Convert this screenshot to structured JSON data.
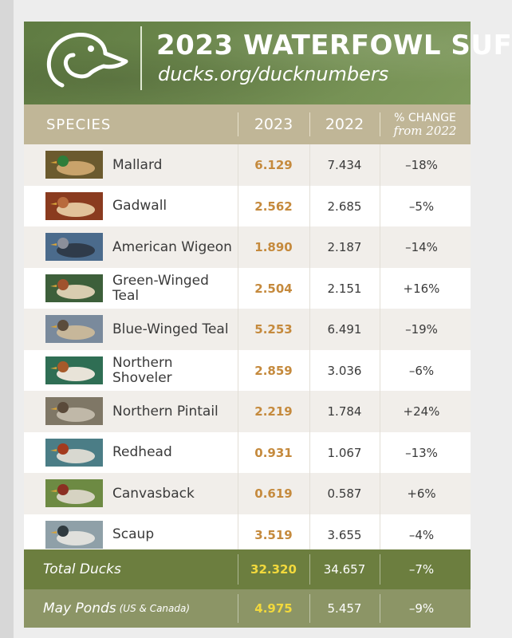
{
  "header": {
    "title": "2023 WATERFOWL SUF",
    "subtitle": "ducks.org/ducknumbers"
  },
  "columns": {
    "species": "SPECIES",
    "y2023": "2023",
    "y2022": "2022",
    "change_line1": "% CHANGE",
    "change_line2": "from 2022"
  },
  "rows": [
    {
      "species": "Mallard",
      "v2023": "6.129",
      "v2022": "7.434",
      "change": "–18%",
      "icon": "mallard-photo"
    },
    {
      "species": "Gadwall",
      "v2023": "2.562",
      "v2022": "2.685",
      "change": "–5%",
      "icon": "gadwall-photo"
    },
    {
      "species": "American Wigeon",
      "v2023": "1.890",
      "v2022": "2.187",
      "change": "–14%",
      "icon": "american-wigeon-photo"
    },
    {
      "species": "Green-Winged Teal",
      "v2023": "2.504",
      "v2022": "2.151",
      "change": "+16%",
      "icon": "green-winged-teal-photo"
    },
    {
      "species": "Blue-Winged Teal",
      "v2023": "5.253",
      "v2022": "6.491",
      "change": "–19%",
      "icon": "blue-winged-teal-photo"
    },
    {
      "species": "Northern Shoveler",
      "v2023": "2.859",
      "v2022": "3.036",
      "change": "–6%",
      "icon": "northern-shoveler-photo"
    },
    {
      "species": "Northern Pintail",
      "v2023": "2.219",
      "v2022": "1.784",
      "change": "+24%",
      "icon": "northern-pintail-photo"
    },
    {
      "species": "Redhead",
      "v2023": "0.931",
      "v2022": "1.067",
      "change": "–13%",
      "icon": "redhead-photo"
    },
    {
      "species": "Canvasback",
      "v2023": "0.619",
      "v2022": "0.587",
      "change": "+6%",
      "icon": "canvasback-photo"
    },
    {
      "species": "Scaup",
      "v2023": "3.519",
      "v2022": "3.655",
      "change": "–4%",
      "icon": "scaup-photo"
    }
  ],
  "totals": {
    "total_label": "Total Ducks",
    "total_2023": "32.320",
    "total_2022": "34.657",
    "total_change": "–7%",
    "ponds_label": "May Ponds",
    "ponds_sub": "(US & Canada)",
    "ponds_2023": "4.975",
    "ponds_2022": "5.457",
    "ponds_change": "–9%"
  },
  "colors": {
    "header_green": "#6f8a4e",
    "table_head_tan": "#c0b697",
    "value_2023_orange": "#c58a3d",
    "total_row_green": "#6c7e3f",
    "ponds_row_green": "#8c9566",
    "total_value_yellow": "#f2d93c"
  }
}
